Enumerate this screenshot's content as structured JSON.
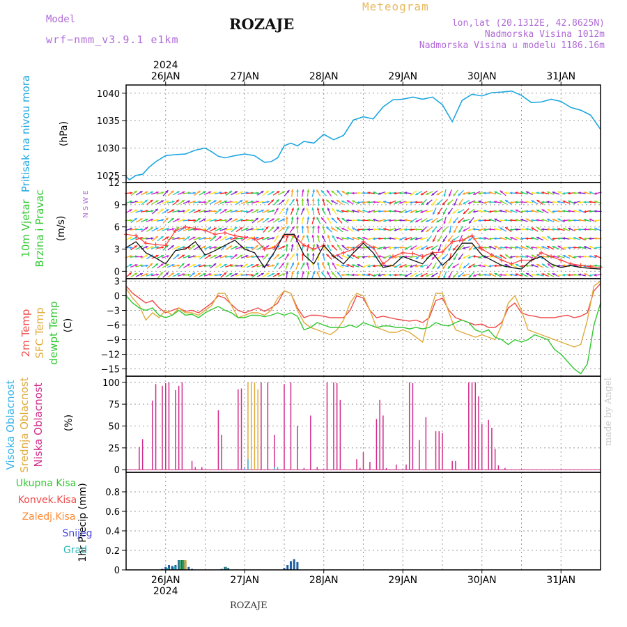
{
  "header": {
    "model_label": "Model",
    "model_name": "wrf−nmm_v3.9.1  e1km",
    "title": "ROZAJE",
    "meteogram_label": "Meteogram",
    "lonlat": "lon,lat (20.1312E, 42.8625N)",
    "altitude": "Nadmorska Visina 1012m",
    "model_altitude": "Nadmorska Visina u modelu 1186.16m"
  },
  "footer": {
    "station": "ROZAJE",
    "watermark": "made by Angel"
  },
  "colors": {
    "pressure": "#1ea7e1",
    "temp2m": "#f04a4a",
    "sfc_temp": "#e0ab3c",
    "dewpoint": "#32c832",
    "high_cloud": "#39b3ea",
    "mid_cloud": "#e0ab3c",
    "low_cloud": "#d12b8a",
    "total_precip": "#32c832",
    "conv_precip": "#f04a4a",
    "frozen_precip": "#ff8a33",
    "snow": "#4646dd",
    "graupel": "#29b6b6",
    "wind_speed": "#111111",
    "model_text": "#b06ad6",
    "meteogram_text": "#e7b95e"
  },
  "chart_data": [
    {
      "type": "line",
      "panel": "pressure",
      "ylabel": "Pritisak na nivou mora",
      "unit": "(hPa)",
      "yticks": [
        1025,
        1030,
        1035,
        1040
      ],
      "ylim": [
        1023.7,
        1041.5
      ],
      "xlim": [
        0,
        144
      ],
      "x": [
        0,
        1,
        3,
        5,
        7,
        9,
        12,
        15,
        18,
        21,
        24,
        26,
        28,
        30,
        33,
        36,
        39,
        42,
        44,
        46,
        48,
        50,
        52,
        54,
        57,
        60,
        63,
        66,
        69,
        72,
        75,
        78,
        81,
        84,
        87,
        90,
        93,
        96,
        99,
        102,
        105,
        108,
        111,
        114,
        117,
        120,
        123,
        126,
        129,
        132,
        135,
        138,
        141,
        144
      ],
      "values": [
        1024.8,
        1024.2,
        1025.0,
        1025.2,
        1026.5,
        1027.5,
        1028.6,
        1028.8,
        1028.9,
        1029.6,
        1030.0,
        1029.3,
        1028.5,
        1028.2,
        1028.6,
        1028.9,
        1028.6,
        1027.4,
        1027.5,
        1028.2,
        1030.4,
        1030.9,
        1030.4,
        1031.2,
        1030.9,
        1032.5,
        1031.5,
        1032.3,
        1035.1,
        1035.7,
        1035.3,
        1037.5,
        1038.8,
        1038.9,
        1039.3,
        1038.9,
        1039.3,
        1037.9,
        1034.8,
        1038.7,
        1039.8,
        1039.5,
        1040.1,
        1040.2,
        1040.4,
        1039.6,
        1038.3,
        1038.4,
        1038.9,
        1038.5,
        1037.4,
        1036.9,
        1036.0,
        1033.4
      ]
    },
    {
      "type": "vector",
      "panel": "wind",
      "ylabel": [
        "10m Vjetar",
        "Brzina i Pravac"
      ],
      "unit": "(m/s)",
      "compass": "N  S  W  E",
      "yticks": [
        0,
        3,
        6,
        9,
        12
      ],
      "ylim": [
        -1,
        12
      ],
      "x": [
        0,
        3,
        6,
        9,
        12,
        15,
        18,
        21,
        24,
        27,
        30,
        33,
        36,
        39,
        42,
        45,
        48,
        51,
        54,
        57,
        60,
        63,
        66,
        69,
        72,
        75,
        78,
        81,
        84,
        87,
        90,
        93,
        96,
        99,
        102,
        105,
        108,
        111,
        114,
        117,
        120,
        123,
        126,
        129,
        132,
        135,
        138,
        141,
        144
      ],
      "speed": [
        3.2,
        4.0,
        2.5,
        1.8,
        1.0,
        2.8,
        3.0,
        4.0,
        2.2,
        2.8,
        3.5,
        4.2,
        3.0,
        2.5,
        0.5,
        2.6,
        5.0,
        5.0,
        2.2,
        1.0,
        3.5,
        2.0,
        1.0,
        2.5,
        3.8,
        2.5,
        0.5,
        0.8,
        2.0,
        1.5,
        1.0,
        2.5,
        0.8,
        2.0,
        3.8,
        3.8,
        2.2,
        1.5,
        0.8,
        0.5,
        0.3,
        1.5,
        2.0,
        1.0,
        0.5,
        0.8,
        0.5,
        0.4,
        0.3
      ],
      "gust": [
        5.0,
        4.8,
        3.8,
        3.6,
        3.5,
        5.5,
        6.0,
        5.8,
        5.5,
        5.0,
        5.2,
        4.8,
        4.6,
        4.4,
        3.0,
        3.2,
        4.8,
        4.8,
        3.5,
        3.0,
        3.5,
        2.0,
        2.5,
        3.0,
        4.0,
        3.2,
        1.0,
        2.0,
        2.5,
        2.4,
        2.0,
        2.5,
        2.6,
        4.0,
        4.2,
        4.8,
        3.0,
        2.2,
        1.5,
        1.0,
        1.5,
        1.5,
        2.5,
        2.0,
        1.5,
        1.0,
        0.8,
        0.6,
        0.5
      ],
      "direction_deg": [
        250,
        250,
        245,
        240,
        240,
        245,
        250,
        250,
        250,
        245,
        250,
        250,
        255,
        250,
        240,
        230,
        200,
        190,
        180,
        170,
        150,
        130,
        110,
        100,
        90,
        90,
        85,
        80,
        80,
        70,
        60,
        40,
        30,
        40,
        60,
        80,
        90,
        100,
        110,
        100,
        100,
        110,
        110,
        100,
        100,
        95,
        95,
        95,
        95
      ]
    },
    {
      "type": "line",
      "panel": "temperature",
      "ylabel": [
        "2m Temp",
        "SFC Temp",
        "dewpt Temp"
      ],
      "unit": "(C)",
      "yticks": [
        3,
        0,
        -3,
        -6,
        -9,
        -12,
        -15
      ],
      "ylim": [
        -16.5,
        3.5
      ],
      "xlim": [
        0,
        144
      ],
      "x": [
        0,
        2,
        4,
        6,
        8,
        10,
        12,
        14,
        16,
        18,
        20,
        22,
        24,
        26,
        28,
        30,
        32,
        34,
        36,
        38,
        40,
        42,
        44,
        46,
        48,
        50,
        52,
        54,
        56,
        58,
        60,
        62,
        64,
        66,
        68,
        70,
        72,
        74,
        76,
        78,
        80,
        82,
        84,
        86,
        88,
        90,
        92,
        94,
        96,
        98,
        100,
        102,
        104,
        106,
        108,
        110,
        112,
        114,
        116,
        118,
        120,
        122,
        124,
        126,
        128,
        130,
        132,
        134,
        136,
        138,
        140,
        142,
        144
      ],
      "series": [
        {
          "name": "2m Temp",
          "values": [
            2.0,
            0.5,
            -0.5,
            -1.5,
            -1.0,
            -2.5,
            -3.5,
            -3.0,
            -2.5,
            -3.2,
            -3.0,
            -3.5,
            -2.5,
            -1.5,
            0.0,
            -0.5,
            -1.8,
            -3.0,
            -3.5,
            -3.0,
            -2.5,
            -3.2,
            -2.5,
            -1.5,
            1.0,
            0.5,
            -2.5,
            -4.5,
            -4.0,
            -4.0,
            -4.2,
            -4.5,
            -4.5,
            -4.5,
            -3.0,
            0.0,
            -0.5,
            -3.0,
            -4.5,
            -4.2,
            -4.5,
            -4.8,
            -5.0,
            -5.2,
            -5.0,
            -5.5,
            -4.5,
            -1.0,
            -0.5,
            -3.0,
            -4.5,
            -5.0,
            -5.5,
            -6.0,
            -5.8,
            -6.5,
            -6.5,
            -5.5,
            -2.5,
            -1.5,
            -3.5,
            -4.0,
            -4.2,
            -4.5,
            -4.5,
            -4.5,
            -4.2,
            -4.0,
            -4.5,
            -4.2,
            -3.5,
            1.0,
            2.5
          ]
        },
        {
          "name": "SFC Temp",
          "values": [
            1.5,
            -0.5,
            -2.0,
            -5.0,
            -3.5,
            -4.5,
            -3.0,
            -4.0,
            -2.5,
            -3.5,
            -3.5,
            -4.0,
            -3.0,
            -2.0,
            0.5,
            0.5,
            -2.0,
            -4.5,
            -4.0,
            -3.5,
            -3.5,
            -4.0,
            -3.0,
            -0.5,
            1.0,
            0.5,
            -3.0,
            -5.5,
            -6.5,
            -7.0,
            -7.5,
            -8.0,
            -7.0,
            -5.0,
            -1.5,
            0.5,
            0.0,
            -3.0,
            -6.5,
            -7.0,
            -7.5,
            -7.5,
            -7.0,
            -7.5,
            -8.5,
            -9.5,
            -4.0,
            0.5,
            0.5,
            -3.5,
            -7.0,
            -7.5,
            -8.0,
            -8.5,
            -8.0,
            -8.5,
            -9.0,
            -6.0,
            -1.5,
            0.0,
            -3.0,
            -7.0,
            -7.5,
            -8.0,
            -8.5,
            -9.0,
            -9.5,
            -10.0,
            -10.5,
            -10.0,
            -5.0,
            2.0,
            3.0
          ]
        },
        {
          "name": "dewpt Temp",
          "values": [
            0.0,
            -1.5,
            -2.5,
            -3.0,
            -2.5,
            -4.0,
            -4.5,
            -4.0,
            -3.0,
            -4.0,
            -3.8,
            -4.5,
            -3.5,
            -2.8,
            -2.2,
            -3.0,
            -3.5,
            -4.5,
            -4.5,
            -4.0,
            -4.0,
            -4.3,
            -4.0,
            -3.5,
            -4.0,
            -3.5,
            -4.2,
            -7.0,
            -6.5,
            -5.5,
            -6.0,
            -6.5,
            -6.5,
            -6.5,
            -6.0,
            -6.5,
            -5.5,
            -6.0,
            -6.5,
            -6.2,
            -6.2,
            -6.5,
            -6.5,
            -6.8,
            -6.5,
            -6.8,
            -6.5,
            -5.5,
            -6.0,
            -6.2,
            -5.5,
            -5.0,
            -5.5,
            -7.0,
            -7.5,
            -7.0,
            -8.5,
            -9.0,
            -10.0,
            -9.0,
            -9.5,
            -9.0,
            -8.0,
            -8.5,
            -9.0,
            -11.0,
            -12.0,
            -13.5,
            -15.0,
            -16.0,
            -14.0,
            -6.0,
            -1.5
          ]
        }
      ]
    },
    {
      "type": "bar",
      "panel": "clouds",
      "ylabel": [
        "Visoka Oblacnost",
        "Srednja Oblacnost",
        "Niska Oblacnost"
      ],
      "unit": "(%)",
      "yticks": [
        0,
        25,
        50,
        75,
        100
      ],
      "ylim": [
        -3,
        107
      ],
      "series": [
        {
          "name": "Niska Oblacnost",
          "x": [
            4,
            5,
            8,
            9,
            11,
            12,
            13,
            15,
            16,
            17,
            20,
            21,
            23,
            28,
            29,
            34,
            35,
            36,
            41,
            43,
            45,
            48,
            50,
            52,
            54,
            56,
            58,
            61,
            63,
            64,
            65,
            70,
            71,
            72,
            74,
            76,
            77,
            78,
            79,
            82,
            85,
            86,
            87,
            89,
            91,
            94,
            95,
            96,
            99,
            100,
            104,
            105,
            106,
            107,
            108,
            110,
            111,
            112,
            113,
            115
          ],
          "values": [
            26,
            35,
            79,
            98,
            96,
            99,
            100,
            91,
            96,
            100,
            10,
            3,
            3,
            68,
            40,
            92,
            93,
            3,
            100,
            100,
            40,
            98,
            100,
            50,
            2,
            62,
            3,
            100,
            100,
            99,
            80,
            12,
            2,
            20,
            9,
            58,
            80,
            62,
            2,
            6,
            6,
            100,
            99,
            34,
            60,
            44,
            44,
            42,
            10,
            10,
            100,
            100,
            100,
            84,
            52,
            57,
            48,
            24,
            5,
            2
          ]
        },
        {
          "name": "Srednja Oblacnost",
          "x": [
            37,
            38,
            39,
            40
          ],
          "values": [
            100,
            100,
            100,
            92
          ]
        },
        {
          "name": "Visoka Oblacnost",
          "x": [
            36,
            37,
            45,
            46
          ],
          "values": [
            2,
            12,
            3,
            3
          ]
        }
      ]
    },
    {
      "type": "bar",
      "panel": "precipitation",
      "legend": [
        "Ukupna  Kisa",
        "Konvek.Kisa",
        "Zaledj.Kisa",
        "Snijeg",
        "Grad"
      ],
      "ylabel": "1hr Precip",
      "unit": "(mm)",
      "yticks": [
        0,
        0.2,
        0.4,
        0.6,
        0.8
      ],
      "ylim": [
        0,
        1.0
      ],
      "series": [
        {
          "name": "Snijeg",
          "x": [
            11,
            12,
            13,
            14,
            15,
            16,
            17,
            18,
            19,
            20,
            29,
            30,
            31,
            48,
            49,
            50,
            51,
            52
          ],
          "values": [
            0.01,
            0.03,
            0.05,
            0.04,
            0.05,
            0.1,
            0.1,
            0.08,
            0.03,
            0.01,
            0.01,
            0.03,
            0.02,
            0.02,
            0.05,
            0.09,
            0.11,
            0.08
          ]
        },
        {
          "name": "Ukupna  Kisa",
          "x": [
            16,
            17,
            30
          ],
          "values": [
            0.1,
            0.1,
            0.03
          ]
        },
        {
          "name": "Zaledj.Kisa",
          "x": [
            18
          ],
          "values": [
            0.1
          ]
        },
        {
          "name": "Grad",
          "x": [
            13,
            15,
            31
          ],
          "values": [
            0.02,
            0.03,
            0.01
          ]
        }
      ]
    }
  ],
  "x_axis": {
    "day_labels": [
      "26JAN",
      "27JAN",
      "28JAN",
      "29JAN",
      "30JAN",
      "31JAN"
    ],
    "day_hours": [
      12,
      36,
      60,
      84,
      108,
      132
    ],
    "year_label": "2024",
    "range_hours": [
      0,
      144
    ]
  }
}
